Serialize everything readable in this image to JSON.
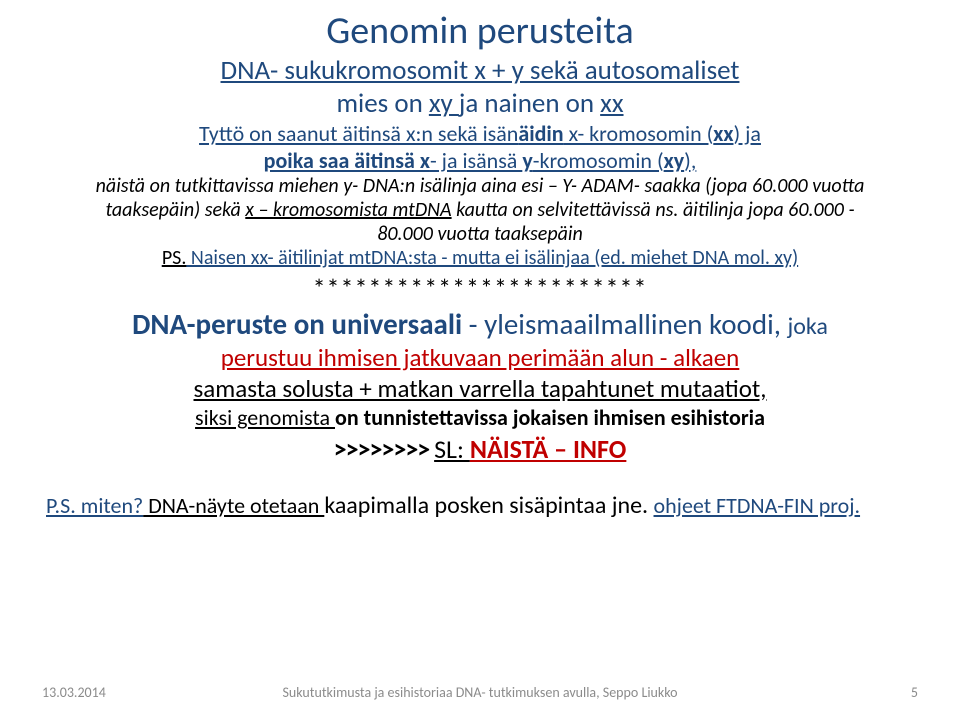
{
  "title": "Genomin perusteita",
  "sub_underline": "DNA- sukukromosomit x + y sekä autosomaliset",
  "sub2_pre": "mies on ",
  "sub2_xy": "xy ",
  "sub2_mid": " ja nainen on ",
  "sub2_xx": "xx",
  "l3a": "Tyttö on saanut äitinsä x:n sekä isän",
  "l3b": "äidin",
  "l3c": " x- kromosomin (",
  "l3d": "xx",
  "l3e": ")  ja",
  "l4a": "poika saa äitinsä x",
  "l4b": "-  ja isänsä ",
  "l4c": "y",
  "l4d": "-kromosomin (",
  "l4e": "xy",
  "l4f": "),",
  "it1": "näistä on tutkittavissa miehen y- DNA:n isälinja aina esi – Y- ADAM- saakka (jopa 60.000 vuotta",
  "it2a": "taaksepäin) sekä ",
  "it2b": "x – kromosomista mtDNA",
  "it2c": " kautta on selvitettävissä ns. äitilinja jopa 60.000 -",
  "it3": "80.000 vuotta  taaksepäin",
  "ps_pre": "PS.",
  "ps_rest": " Naisen xx- äitilinjat mtDNA:sta - mutta ei isälinjaa (ed. miehet DNA mol. xy)",
  "stars": "************************",
  "big_a": "DNA-peruste on universaali ",
  "big_b": "- yleismaailmallinen koodi, ",
  "big_c": "joka",
  "red": "perustuu ihmisen jatkuvaan perimään  alun - alkaen",
  "mut": "samasta solusta + matkan varrella tapahtunet mutaatiot,",
  "siksi_a": "siksi  genomista ",
  "siksi_b": "on tunnistettavissa  jokaisen ihmisen esihistoria",
  "chev": ">>>>>>>> ",
  "sl": "SL: ",
  "info": "NÄISTÄ – INFO",
  "psm_a": "P.S. miten?",
  "psm_b": " DNA-näyte otetaan ",
  "psm_c": "kaapimalla posken sisäpintaa jne. ",
  "psm_d": "ohjeet FTDNA-FIN proj.",
  "footer": {
    "date": "13.03.2014",
    "center": "Sukututkimusta ja esihistoriaa DNA- tutkimuksen avulla, Seppo Liukko",
    "page": "5"
  }
}
